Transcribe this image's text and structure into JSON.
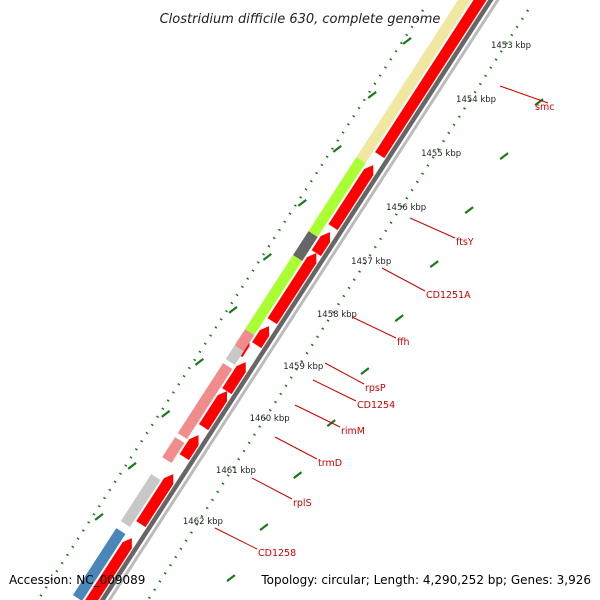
{
  "title": "Clostridium difficile 630, complete genome",
  "footer": {
    "accession": "Accession: NC_009089",
    "topology": "Topology: circular; Length: 4,290,252 bp; Genes: 3,926"
  },
  "colors": {
    "background": "#ffffff",
    "backbone_dark": "#666666",
    "backbone_light": "#bbbbbb",
    "tick": "#1a7a1a",
    "label_red": "#cc0000",
    "forward_gene": "#ff0000",
    "smc": "#f0e8a0",
    "ftsY": "#aaff33",
    "CD1251A": "#666666",
    "ffh": "#aaff33",
    "rpsP": "#f08c8c",
    "CD1254": "#c8c8c8",
    "rimM": "#f08c8c",
    "trmD": "#f08c8c",
    "rplS": "#f08c8c",
    "CD1258": "#c8c8c8",
    "blue_gene": "#4a86b8"
  },
  "ticks": [
    "1453 kbp",
    "1454 kbp",
    "1455 kbp",
    "1456 kbp",
    "1457 kbp",
    "1458 kbp",
    "1459 kbp",
    "1460 kbp",
    "1461 kbp",
    "1462 kbp"
  ],
  "reverse_genes": [
    "smc",
    "ftsY",
    "CD1251A",
    "ffh",
    "rpsP",
    "CD1254",
    "rimM",
    "trmD",
    "rplS",
    "CD1258"
  ]
}
